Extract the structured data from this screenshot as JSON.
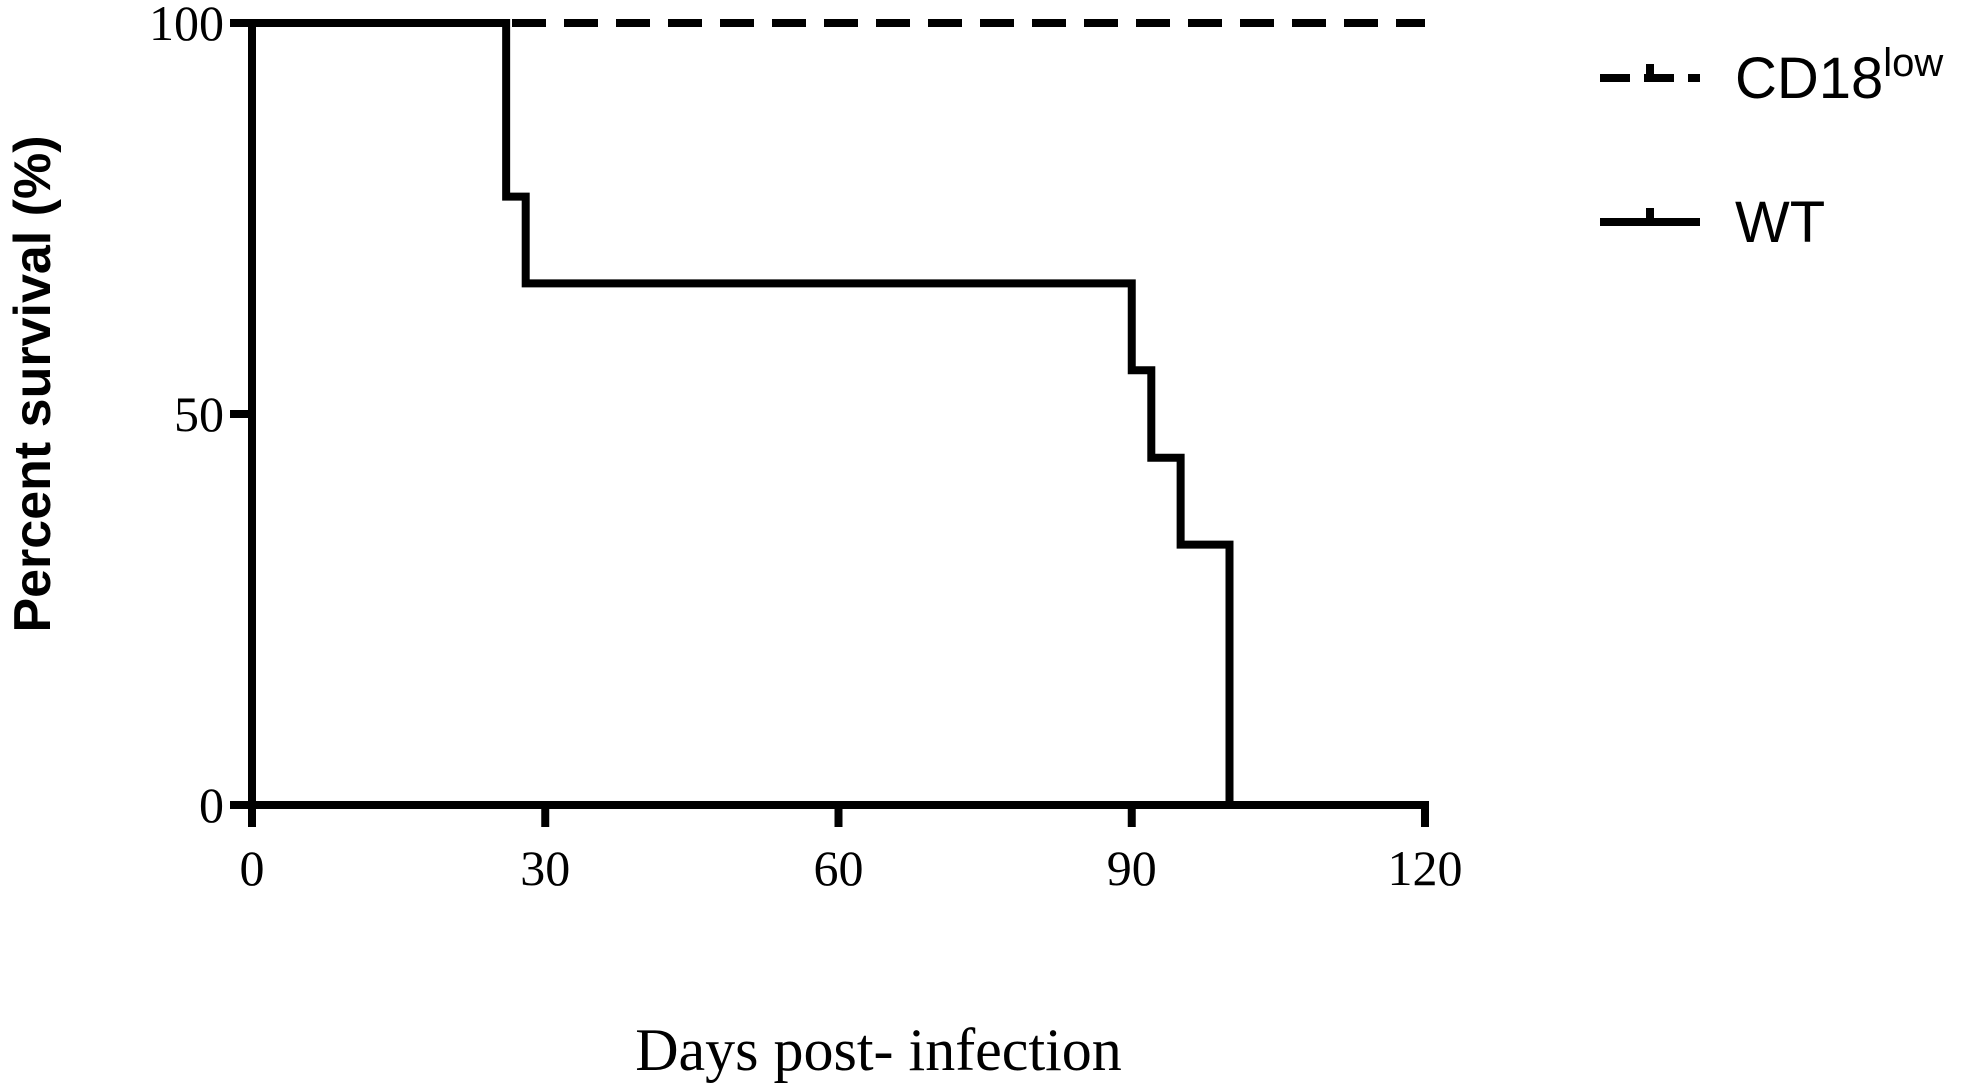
{
  "chart_data": {
    "type": "line",
    "subtype": "kaplan-meier-survival",
    "xlabel": "Days post- infection",
    "ylabel": "Percent survival (%)",
    "xlim": [
      0,
      120
    ],
    "ylim": [
      0,
      100
    ],
    "xticks": [
      0,
      30,
      60,
      90,
      120
    ],
    "yticks": [
      0,
      50,
      100
    ],
    "grid": false,
    "legend_position": "top-right",
    "series": [
      {
        "name": "CD18",
        "name_superscript": "low",
        "line_style": "dashed",
        "color": "#000000",
        "steps": [
          {
            "x": 0,
            "y": 100
          },
          {
            "x": 120,
            "y": 100
          }
        ]
      },
      {
        "name": "WT",
        "line_style": "solid",
        "color": "#000000",
        "steps": [
          {
            "x": 0,
            "y": 100
          },
          {
            "x": 26,
            "y": 77.8
          },
          {
            "x": 28,
            "y": 66.7
          },
          {
            "x": 90,
            "y": 55.6
          },
          {
            "x": 92,
            "y": 44.4
          },
          {
            "x": 95,
            "y": 33.3
          },
          {
            "x": 100,
            "y": 0
          }
        ]
      }
    ]
  }
}
